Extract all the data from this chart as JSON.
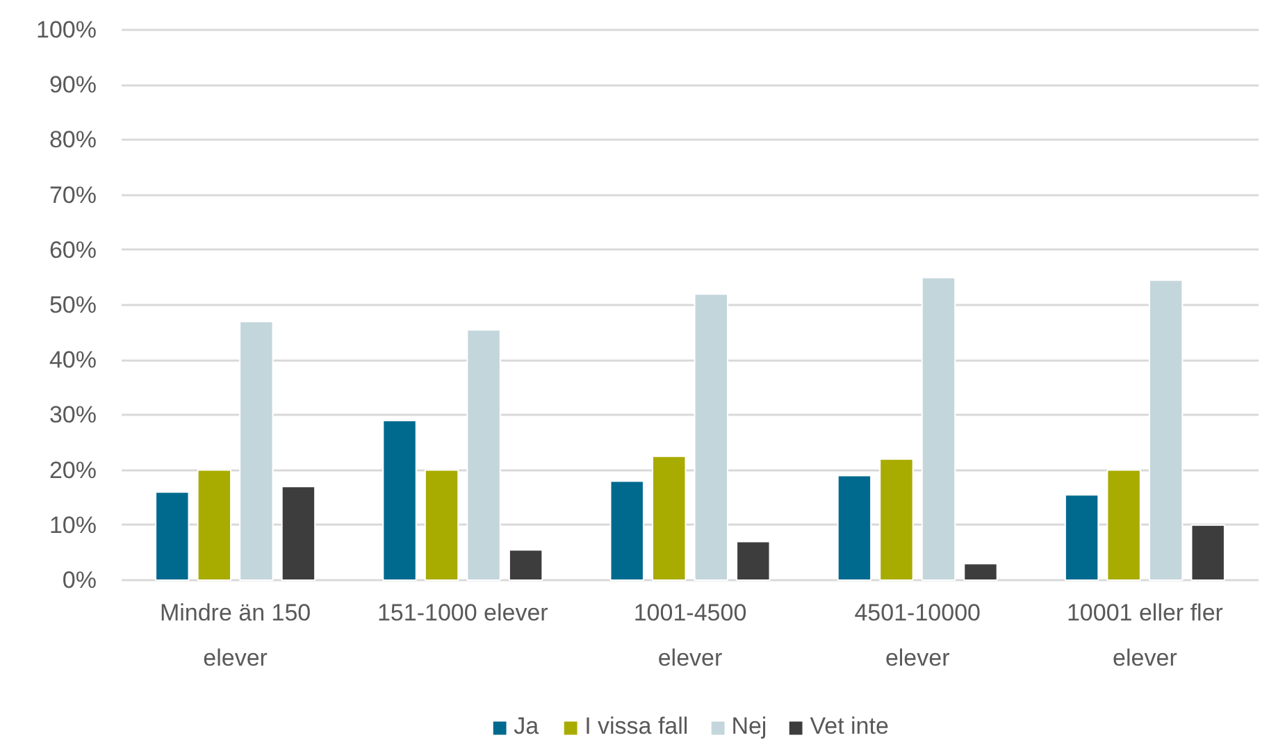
{
  "chart_data": {
    "type": "bar",
    "categories": [
      "Mindre än 150 elever",
      "151-1000 elever",
      "1001-4500 elever",
      "4501-10000 elever",
      "10001 eller fler elever"
    ],
    "series": [
      {
        "name": "Ja",
        "color": "#006a8e",
        "values": [
          16,
          29,
          18,
          19,
          15.5
        ]
      },
      {
        "name": "I vissa fall",
        "color": "#a8ab00",
        "values": [
          20,
          20,
          22.5,
          22,
          20
        ]
      },
      {
        "name": "Nej",
        "color": "#c3d6dc",
        "values": [
          47,
          45.5,
          52,
          55,
          54.5
        ]
      },
      {
        "name": "Vet inte",
        "color": "#3d3d3d",
        "values": [
          17,
          5.5,
          7,
          3,
          10
        ]
      }
    ],
    "ylim": [
      0,
      100
    ],
    "yticks": [
      {
        "value": 0,
        "label": "0%"
      },
      {
        "value": 10,
        "label": "10%"
      },
      {
        "value": 20,
        "label": "20%"
      },
      {
        "value": 30,
        "label": "30%"
      },
      {
        "value": 40,
        "label": "40%"
      },
      {
        "value": 50,
        "label": "50%"
      },
      {
        "value": 60,
        "label": "60%"
      },
      {
        "value": 70,
        "label": "70%"
      },
      {
        "value": 80,
        "label": "80%"
      },
      {
        "value": 90,
        "label": "90%"
      },
      {
        "value": 100,
        "label": "100%"
      }
    ],
    "grid": "y",
    "legend": "bottom"
  }
}
